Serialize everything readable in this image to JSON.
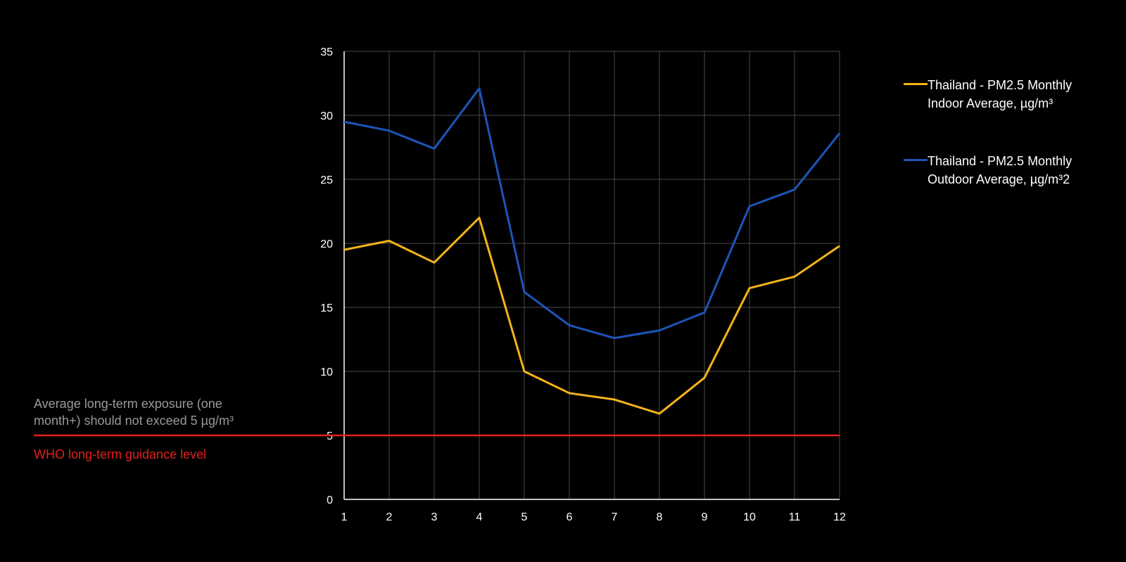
{
  "chart_data": {
    "type": "line",
    "x": [
      1,
      2,
      3,
      4,
      5,
      6,
      7,
      8,
      9,
      10,
      11,
      12
    ],
    "series": [
      {
        "name": "Thailand -  PM2.5 Monthly Indoor Average, µg/m³",
        "color": "#f5b31a",
        "values": [
          19.5,
          20.2,
          18.5,
          22.0,
          10.0,
          8.3,
          7.8,
          6.7,
          9.5,
          16.5,
          17.4,
          19.8
        ]
      },
      {
        "name": "Thailand -  PM2.5 Monthly Outdoor Average, µg/m³2",
        "color": "#1d55b8",
        "values": [
          29.5,
          28.8,
          27.4,
          32.1,
          16.2,
          13.6,
          12.6,
          13.2,
          14.6,
          22.9,
          24.2,
          28.6
        ]
      }
    ],
    "reference_line": {
      "value": 5,
      "color": "#e0201b",
      "label": "WHO long-term guidance level",
      "note": "Average long-term exposure (one month+) should not exceed 5 µg/m³"
    },
    "xlim": [
      1,
      12
    ],
    "ylim": [
      0,
      35
    ],
    "yticks": [
      0,
      5,
      10,
      15,
      20,
      25,
      30,
      35
    ],
    "xticks": [
      1,
      2,
      3,
      4,
      5,
      6,
      7,
      8,
      9,
      10,
      11,
      12
    ],
    "grid": true,
    "legend_position": "right",
    "title": "",
    "xlabel": "",
    "ylabel": ""
  }
}
